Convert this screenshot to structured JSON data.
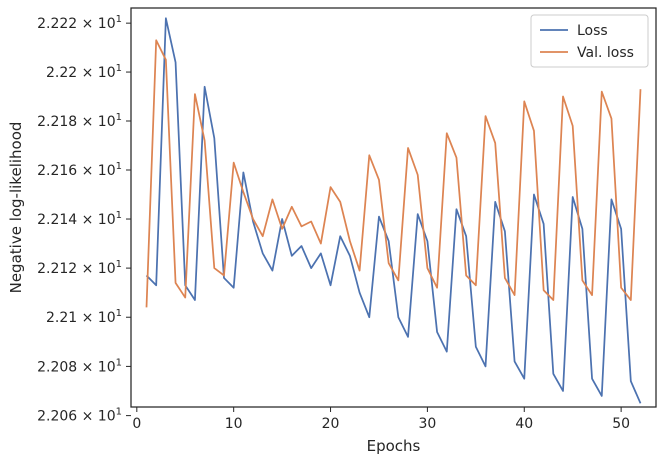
{
  "chart_data": {
    "type": "line",
    "xlabel": "Epochs",
    "ylabel": "Negative log-likelihood",
    "xlim": [
      -0.6,
      53.6
    ],
    "ylim": [
      22.0635,
      22.2262
    ],
    "yscale": "log",
    "grid": false,
    "legend_position": "top-right",
    "x_ticks": [
      0,
      10,
      20,
      30,
      40,
      50
    ],
    "x_tick_labels": [
      "0",
      "10",
      "20",
      "30",
      "40",
      "50"
    ],
    "y_ticks": [
      22.06,
      22.08,
      22.1,
      22.12,
      22.14,
      22.16,
      22.18,
      22.2,
      22.22
    ],
    "y_tick_labels": [
      {
        "mant": "2.206",
        "exp": "1"
      },
      {
        "mant": "2.208",
        "exp": "1"
      },
      {
        "mant": "2.21",
        "exp": "1"
      },
      {
        "mant": "2.212",
        "exp": "1"
      },
      {
        "mant": "2.214",
        "exp": "1"
      },
      {
        "mant": "2.216",
        "exp": "1"
      },
      {
        "mant": "2.218",
        "exp": "1"
      },
      {
        "mant": "2.22",
        "exp": "1"
      },
      {
        "mant": "2.222",
        "exp": "1"
      }
    ],
    "x": [
      1,
      2,
      3,
      4,
      5,
      6,
      7,
      8,
      9,
      10,
      11,
      12,
      13,
      14,
      15,
      16,
      17,
      18,
      19,
      20,
      21,
      22,
      23,
      24,
      25,
      26,
      27,
      28,
      29,
      30,
      31,
      32,
      33,
      34,
      35,
      36,
      37,
      38,
      39,
      40,
      41,
      42,
      43,
      44,
      45,
      46,
      47,
      48,
      49,
      50,
      51,
      52
    ],
    "series": [
      {
        "name": "Loss",
        "color": "#4c72b0",
        "values": [
          22.117,
          22.113,
          22.222,
          22.204,
          22.113,
          22.107,
          22.194,
          22.173,
          22.116,
          22.112,
          22.159,
          22.139,
          22.126,
          22.119,
          22.14,
          22.125,
          22.129,
          22.12,
          22.126,
          22.113,
          22.133,
          22.125,
          22.11,
          22.1,
          22.141,
          22.131,
          22.1,
          22.092,
          22.142,
          22.131,
          22.094,
          22.086,
          22.144,
          22.133,
          22.088,
          22.08,
          22.147,
          22.135,
          22.082,
          22.075,
          22.15,
          22.138,
          22.077,
          22.07,
          22.149,
          22.136,
          22.075,
          22.068,
          22.148,
          22.136,
          22.074,
          22.065
        ]
      },
      {
        "name": "Val. loss",
        "color": "#dd8452",
        "values": [
          22.104,
          22.213,
          22.205,
          22.114,
          22.108,
          22.191,
          22.172,
          22.12,
          22.117,
          22.163,
          22.151,
          22.14,
          22.133,
          22.148,
          22.136,
          22.145,
          22.137,
          22.139,
          22.13,
          22.153,
          22.147,
          22.131,
          22.119,
          22.166,
          22.156,
          22.122,
          22.115,
          22.169,
          22.158,
          22.12,
          22.112,
          22.175,
          22.165,
          22.117,
          22.113,
          22.182,
          22.171,
          22.116,
          22.109,
          22.188,
          22.176,
          22.111,
          22.107,
          22.19,
          22.178,
          22.115,
          22.109,
          22.192,
          22.181,
          22.112,
          22.107,
          22.193
        ]
      }
    ]
  }
}
